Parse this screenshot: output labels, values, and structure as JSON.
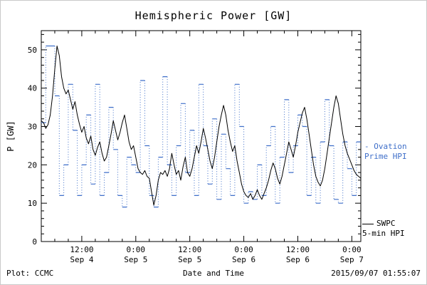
{
  "chart_data": {
    "type": "line",
    "title": "Hemispheric Power [GW]",
    "xlabel": "Date and Time",
    "ylabel": "P [GW]",
    "ylim": [
      0,
      55
    ],
    "xlim_hours": [
      0,
      71
    ],
    "grid": false,
    "y_ticks": [
      0,
      10,
      20,
      30,
      40,
      50
    ],
    "x_ticks": [
      {
        "hour": 9,
        "line1": "12:00",
        "line2": "Sep 4"
      },
      {
        "hour": 21,
        "line1": "0:00",
        "line2": "Sep 5"
      },
      {
        "hour": 33,
        "line1": "12:00",
        "line2": "Sep 5"
      },
      {
        "hour": 45,
        "line1": "0:00",
        "line2": "Sep 6"
      },
      {
        "hour": 57,
        "line1": "12:00",
        "line2": "Sep 6"
      },
      {
        "hour": 69,
        "line1": "0:00",
        "line2": "Sep 7"
      }
    ],
    "series": [
      {
        "name": "SWPC 5-min HPI",
        "style": "line",
        "color": "#000000",
        "x_start": 0,
        "x_step": 0.5,
        "y": [
          31.5,
          31,
          29.5,
          30.5,
          33,
          38,
          45,
          51,
          48.5,
          43,
          40,
          38.5,
          39.5,
          37,
          34.5,
          36.5,
          33,
          30.5,
          28.5,
          30,
          27,
          25.5,
          27.5,
          24,
          22.5,
          24.5,
          26,
          23,
          21,
          22,
          25,
          28,
          31.5,
          29,
          26.5,
          28.5,
          31,
          33,
          29.5,
          26,
          24,
          25,
          22,
          19,
          18,
          17.5,
          18.5,
          17,
          16.5,
          13,
          9.5,
          12,
          16,
          18,
          17.5,
          18.5,
          17,
          19,
          23,
          20,
          17.5,
          18.5,
          16,
          19.5,
          22,
          18,
          17,
          19,
          22,
          25,
          23,
          26,
          29.5,
          27,
          24,
          21,
          19,
          22,
          26,
          30,
          33,
          35.5,
          33,
          29,
          26,
          23.5,
          25,
          21,
          18,
          15,
          13,
          12,
          11.5,
          12.5,
          11,
          12,
          13.5,
          12,
          11,
          12.5,
          14,
          16,
          18.5,
          20.5,
          19,
          16.5,
          15,
          17,
          20,
          23,
          26,
          24,
          22,
          25,
          28.5,
          31,
          33.5,
          35,
          32,
          28,
          24,
          20,
          17,
          15.5,
          14.5,
          16,
          19,
          23,
          27,
          31,
          35,
          38,
          36,
          32,
          28,
          25,
          23,
          21.5,
          20,
          18.5,
          17.5,
          17,
          16.5
        ]
      },
      {
        "name": "Ovation Prime HPI",
        "style": "step",
        "color": "#3f6fc9",
        "x_start": 0,
        "x_step": 1,
        "y": [
          31,
          51,
          51,
          38,
          12,
          20,
          41,
          29,
          12,
          20,
          33,
          15,
          41,
          12,
          18,
          35,
          24,
          12,
          9,
          22,
          20,
          18,
          42,
          25,
          12,
          9,
          22,
          43,
          20,
          12,
          25,
          36,
          18,
          29,
          12,
          41,
          25,
          15,
          32,
          11,
          28,
          19,
          12,
          41,
          30,
          10,
          13,
          11,
          20,
          12,
          25,
          30,
          10,
          22,
          37,
          18,
          25,
          33,
          30,
          12,
          22,
          10,
          26,
          37,
          25,
          11,
          10,
          26,
          19,
          12,
          26
        ]
      }
    ],
    "legend": [
      {
        "name": "Ovation Prime HPI",
        "line1": "- Ovation",
        "line2": "Prime HPI",
        "color": "#3f6fc9"
      },
      {
        "name": "SWPC 5-min HPI",
        "line1": "SWPC",
        "line2": "5-min HPI",
        "color": "#000000"
      }
    ],
    "footer_left": "Plot: CCMC",
    "footer_right": "2015/09/07 01:55:07"
  }
}
